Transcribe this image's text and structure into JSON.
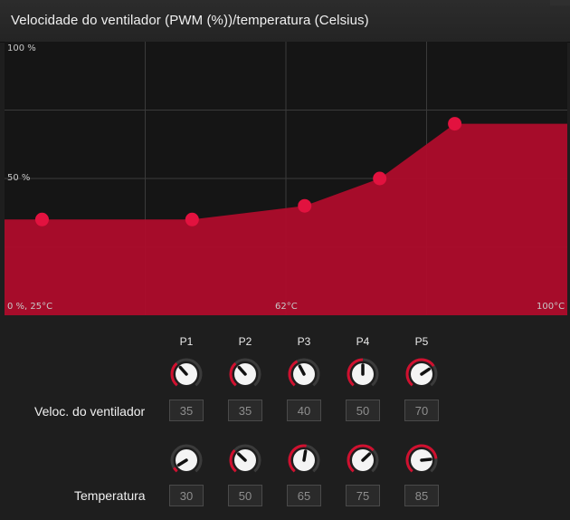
{
  "title": "Velocidade do ventilador (PWM (%))/temperatura (Celsius)",
  "chart_data": {
    "type": "area",
    "y_top_label": "100 %",
    "y_mid_label": "50 %",
    "x_start_label": "0 %, 25°C",
    "x_mid_label": "62°C",
    "x_end_label": "100°C",
    "xlim": [
      25,
      100
    ],
    "ylim": [
      0,
      100
    ],
    "points": [
      {
        "temp": 30,
        "pwm": 35
      },
      {
        "temp": 50,
        "pwm": 35
      },
      {
        "temp": 65,
        "pwm": 40
      },
      {
        "temp": 75,
        "pwm": 50
      },
      {
        "temp": 85,
        "pwm": 70
      }
    ],
    "fill_color": "#ae0c2b",
    "point_color": "#e2123f",
    "grid": true
  },
  "columns": [
    "P1",
    "P2",
    "P3",
    "P4",
    "P5"
  ],
  "rows": {
    "fan": {
      "label": "Veloc. do ventilador",
      "values": [
        "35",
        "35",
        "40",
        "50",
        "70"
      ]
    },
    "temp": {
      "label": "Temperatura",
      "values": [
        "30",
        "50",
        "65",
        "75",
        "85"
      ]
    }
  }
}
